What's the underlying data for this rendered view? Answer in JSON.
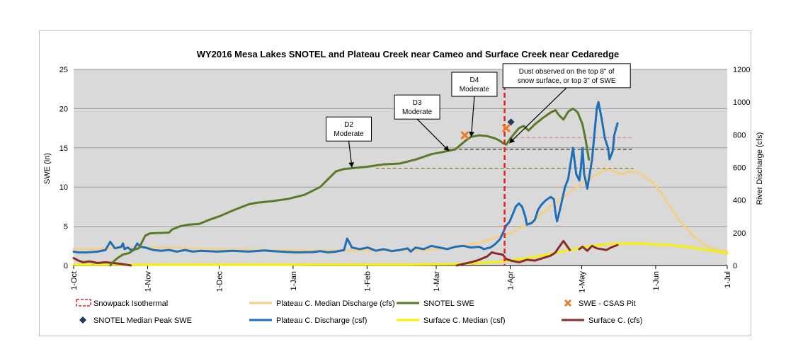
{
  "chart_data": {
    "type": "line",
    "title": "WY2016 Mesa Lakes SNOTEL and Plateau Creek near Cameo and Surface Creek near Cedaredge",
    "ylabel_left": "SWE (in)",
    "ylabel_right": "River Discharge (cfs)",
    "ylim_left": [
      0,
      25
    ],
    "ylim_right": [
      0,
      1200
    ],
    "yticks_left": [
      "0",
      "5",
      "10",
      "15",
      "20",
      "25"
    ],
    "yticks_right": [
      "0",
      "200",
      "400",
      "600",
      "800",
      "1000",
      "1200"
    ],
    "x_categories": [
      "1-Oct",
      "1-Nov",
      "1-Dec",
      "1-Jan",
      "1-Feb",
      "1-Mar",
      "1-Apr",
      "1-May",
      "1-Jun",
      "1-Jul"
    ],
    "grid": "horizontal",
    "legend_position": "bottom",
    "colors": {
      "snotel_swe": "#5a7a28",
      "plateau_discharge": "#1f6fb8",
      "plateau_median": "#f5cf86",
      "surface_median": "#f4f200",
      "surface_c": "#8b2c2c",
      "isothermal": "#e82020",
      "csas_pit": "#ee7b20",
      "median_peak": "#1f3864",
      "grid": "#9a9a9a",
      "plot_bg": "#d9d9d9"
    },
    "series": [
      {
        "name": "SNOTEL SWE",
        "axis": "left",
        "points": [
          [
            23,
            0
          ],
          [
            25,
            0.5
          ],
          [
            28,
            1
          ],
          [
            31,
            1.4
          ],
          [
            35,
            1.6
          ],
          [
            38,
            2
          ],
          [
            41,
            2.2
          ],
          [
            45,
            3.8
          ],
          [
            48,
            4.1
          ],
          [
            60,
            4.2
          ],
          [
            62,
            4.6
          ],
          [
            67,
            5
          ],
          [
            72,
            5.2
          ],
          [
            79,
            5.3
          ],
          [
            85,
            5.8
          ],
          [
            92,
            6.3
          ],
          [
            100,
            7
          ],
          [
            110,
            7.8
          ],
          [
            115,
            8
          ],
          [
            125,
            8.2
          ],
          [
            135,
            8.5
          ],
          [
            145,
            9
          ],
          [
            155,
            10
          ],
          [
            160,
            11
          ],
          [
            165,
            12
          ],
          [
            170,
            12.3
          ],
          [
            180,
            12.5
          ],
          [
            185,
            12.6
          ],
          [
            195,
            12.9
          ],
          [
            205,
            13
          ],
          [
            215,
            13.5
          ],
          [
            225,
            14.2
          ],
          [
            233,
            14.5
          ],
          [
            240,
            14.8
          ],
          [
            244,
            15.5
          ],
          [
            247,
            16
          ],
          [
            250,
            16.4
          ],
          [
            255,
            16.6
          ],
          [
            260,
            16.5
          ],
          [
            265,
            16.2
          ],
          [
            268,
            15.9
          ],
          [
            270,
            15.6
          ],
          [
            272,
            15.4
          ],
          [
            274,
            16
          ],
          [
            277,
            16.8
          ],
          [
            280,
            17.5
          ],
          [
            283,
            17.8
          ],
          [
            286,
            17.2
          ],
          [
            290,
            18
          ],
          [
            295,
            18.8
          ],
          [
            300,
            19.5
          ],
          [
            303,
            19.8
          ],
          [
            305,
            19.2
          ],
          [
            308,
            18.6
          ],
          [
            311,
            19.6
          ],
          [
            314,
            20
          ],
          [
            317,
            19.5
          ],
          [
            320,
            18
          ],
          [
            322,
            16
          ],
          [
            324,
            13.5
          ]
        ]
      },
      {
        "name": "Plateau C. Discharge (csf)",
        "axis": "right",
        "points": [
          [
            0,
            85
          ],
          [
            3,
            80
          ],
          [
            8,
            80
          ],
          [
            15,
            85
          ],
          [
            20,
            95
          ],
          [
            23,
            145
          ],
          [
            26,
            105
          ],
          [
            28,
            110
          ],
          [
            30,
            115
          ],
          [
            31,
            135
          ],
          [
            32,
            100
          ],
          [
            34,
            110
          ],
          [
            36,
            95
          ],
          [
            38,
            100
          ],
          [
            40,
            135
          ],
          [
            42,
            115
          ],
          [
            45,
            110
          ],
          [
            50,
            95
          ],
          [
            55,
            90
          ],
          [
            60,
            95
          ],
          [
            65,
            85
          ],
          [
            70,
            95
          ],
          [
            75,
            85
          ],
          [
            80,
            90
          ],
          [
            90,
            85
          ],
          [
            100,
            90
          ],
          [
            110,
            85
          ],
          [
            120,
            92
          ],
          [
            130,
            85
          ],
          [
            140,
            80
          ],
          [
            150,
            82
          ],
          [
            155,
            88
          ],
          [
            160,
            80
          ],
          [
            165,
            85
          ],
          [
            170,
            95
          ],
          [
            172,
            165
          ],
          [
            175,
            110
          ],
          [
            180,
            100
          ],
          [
            185,
            110
          ],
          [
            190,
            90
          ],
          [
            195,
            100
          ],
          [
            200,
            88
          ],
          [
            205,
            95
          ],
          [
            210,
            105
          ],
          [
            212,
            85
          ],
          [
            215,
            110
          ],
          [
            220,
            100
          ],
          [
            225,
            120
          ],
          [
            230,
            110
          ],
          [
            235,
            100
          ],
          [
            240,
            115
          ],
          [
            245,
            120
          ],
          [
            250,
            110
          ],
          [
            255,
            115
          ],
          [
            258,
            100
          ],
          [
            262,
            110
          ],
          [
            265,
            130
          ],
          [
            268,
            160
          ],
          [
            270,
            200
          ],
          [
            272,
            245
          ],
          [
            274,
            265
          ],
          [
            276,
            310
          ],
          [
            278,
            360
          ],
          [
            280,
            380
          ],
          [
            282,
            360
          ],
          [
            284,
            300
          ],
          [
            285,
            250
          ],
          [
            288,
            260
          ],
          [
            290,
            280
          ],
          [
            292,
            340
          ],
          [
            294,
            370
          ],
          [
            297,
            400
          ],
          [
            300,
            420
          ],
          [
            302,
            405
          ],
          [
            303,
            320
          ],
          [
            304,
            270
          ],
          [
            306,
            350
          ],
          [
            309,
            480
          ],
          [
            311,
            530
          ],
          [
            314,
            720
          ],
          [
            315,
            640
          ],
          [
            316,
            560
          ],
          [
            318,
            520
          ],
          [
            319,
            600
          ],
          [
            320,
            720
          ],
          [
            321,
            560
          ],
          [
            323,
            470
          ],
          [
            326,
            650
          ],
          [
            329,
            960
          ],
          [
            330,
            1000
          ],
          [
            332,
            900
          ],
          [
            334,
            780
          ],
          [
            336,
            720
          ],
          [
            337,
            650
          ],
          [
            339,
            700
          ],
          [
            340,
            800
          ],
          [
            342,
            870
          ]
        ]
      },
      {
        "name": "Plateau C. Median Discharge (cfs)",
        "axis": "right",
        "points": [
          [
            0,
            100
          ],
          [
            10,
            100
          ],
          [
            20,
            105
          ],
          [
            30,
            110
          ],
          [
            40,
            112
          ],
          [
            60,
            110
          ],
          [
            90,
            100
          ],
          [
            120,
            95
          ],
          [
            150,
            90
          ],
          [
            180,
            92
          ],
          [
            200,
            92
          ],
          [
            220,
            95
          ],
          [
            240,
            110
          ],
          [
            255,
            140
          ],
          [
            265,
            170
          ],
          [
            275,
            200
          ],
          [
            285,
            250
          ],
          [
            295,
            320
          ],
          [
            305,
            400
          ],
          [
            315,
            470
          ],
          [
            325,
            540
          ],
          [
            330,
            560
          ],
          [
            335,
            590
          ],
          [
            340,
            575
          ],
          [
            345,
            560
          ],
          [
            350,
            575
          ],
          [
            355,
            570
          ],
          [
            360,
            540
          ],
          [
            365,
            500
          ],
          [
            370,
            440
          ],
          [
            375,
            360
          ],
          [
            380,
            290
          ],
          [
            385,
            230
          ],
          [
            390,
            180
          ],
          [
            395,
            140
          ],
          [
            400,
            110
          ],
          [
            405,
            95
          ],
          [
            410,
            90
          ],
          [
            411,
            80
          ]
        ]
      },
      {
        "name": "Surface C. Median (csf)",
        "axis": "right",
        "points": [
          [
            0,
            5
          ],
          [
            30,
            5
          ],
          [
            60,
            4
          ],
          [
            90,
            4
          ],
          [
            120,
            4
          ],
          [
            150,
            5
          ],
          [
            180,
            5
          ],
          [
            210,
            5
          ],
          [
            240,
            8
          ],
          [
            255,
            15
          ],
          [
            270,
            25
          ],
          [
            285,
            45
          ],
          [
            300,
            70
          ],
          [
            315,
            100
          ],
          [
            325,
            120
          ],
          [
            335,
            130
          ],
          [
            345,
            135
          ],
          [
            355,
            135
          ],
          [
            365,
            130
          ],
          [
            375,
            125
          ],
          [
            385,
            115
          ],
          [
            395,
            100
          ],
          [
            405,
            85
          ],
          [
            411,
            75
          ]
        ]
      },
      {
        "name": "Surface C. (cfs)",
        "axis": "right",
        "points": [
          [
            0,
            45
          ],
          [
            3,
            30
          ],
          [
            6,
            20
          ],
          [
            10,
            25
          ],
          [
            15,
            15
          ],
          [
            20,
            20
          ],
          [
            25,
            15
          ],
          [
            30,
            10
          ],
          [
            33,
            5
          ],
          [
            36,
            0
          ]
        ]
      },
      {
        "name": "Surface C. (cfs) spring",
        "axis": "right",
        "points": [
          [
            241,
            0
          ],
          [
            245,
            10
          ],
          [
            250,
            20
          ],
          [
            255,
            35
          ],
          [
            260,
            55
          ],
          [
            263,
            80
          ],
          [
            265,
            75
          ],
          [
            268,
            70
          ],
          [
            270,
            65
          ],
          [
            272,
            40
          ],
          [
            275,
            30
          ],
          [
            280,
            20
          ],
          [
            285,
            35
          ],
          [
            290,
            30
          ],
          [
            295,
            45
          ],
          [
            300,
            60
          ],
          [
            303,
            80
          ],
          [
            305,
            110
          ],
          [
            308,
            150
          ],
          [
            312,
            95
          ]
        ]
      },
      {
        "name": "Surface C. (cfs) late",
        "axis": "right",
        "points": [
          [
            318,
            100
          ],
          [
            320,
            115
          ],
          [
            323,
            90
          ],
          [
            326,
            120
          ],
          [
            329,
            105
          ],
          [
            332,
            100
          ],
          [
            335,
            95
          ],
          [
            338,
            110
          ],
          [
            342,
            125
          ]
        ]
      }
    ],
    "reference_lines": [
      {
        "axis": "left",
        "value": 14.8,
        "x_from": 235,
        "x_to": 352,
        "color": "#404040"
      },
      {
        "axis": "left",
        "value": 16.3,
        "x_from": 274,
        "x_to": 352,
        "color": "#e09090"
      },
      {
        "axis": "left",
        "value": 12.4,
        "x_from": 190,
        "x_to": 352,
        "color": "#8a7a30"
      }
    ],
    "isothermal_x": 271,
    "csas_pit_points": [
      [
        246,
        16.6
      ],
      [
        272,
        17.5
      ]
    ],
    "median_peak_points": [
      [
        275,
        18.3
      ]
    ],
    "annotations": [
      {
        "lines": [
          "D2",
          "Moderate"
        ],
        "box_x": 173,
        "box_y": 17.4,
        "target_x": 175,
        "target_y": 12.5
      },
      {
        "lines": [
          "D3",
          "Moderate"
        ],
        "box_x": 216,
        "box_y": 20.2,
        "target_x": 236,
        "target_y": 14.6
      },
      {
        "lines": [
          "D4",
          "Moderate"
        ],
        "box_x": 252,
        "box_y": 23.1,
        "target_x": 250,
        "target_y": 16.4
      },
      {
        "lines": [
          "Dust observed on the top 8\" of",
          "snow surface, or top 3\" of SWE"
        ],
        "box_x": 310,
        "box_y": 24.2,
        "target_x": 274,
        "target_y": 15.6
      }
    ],
    "legend": [
      {
        "label": "Snowpack Isothermal",
        "kind": "isothermal"
      },
      {
        "label": "Plateau C. Median Discharge (cfs)",
        "kind": "plateau_median"
      },
      {
        "label": "SNOTEL SWE",
        "kind": "snotel_swe"
      },
      {
        "label": "SWE - CSAS Pit",
        "kind": "csas_pit"
      },
      {
        "label": "SNOTEL Median Peak SWE",
        "kind": "median_peak"
      },
      {
        "label": "Plateau C. Discharge (csf)",
        "kind": "plateau_discharge"
      },
      {
        "label": "Surface C. Median (csf)",
        "kind": "surface_median"
      },
      {
        "label": "Surface C. (cfs)",
        "kind": "surface_c"
      }
    ]
  }
}
